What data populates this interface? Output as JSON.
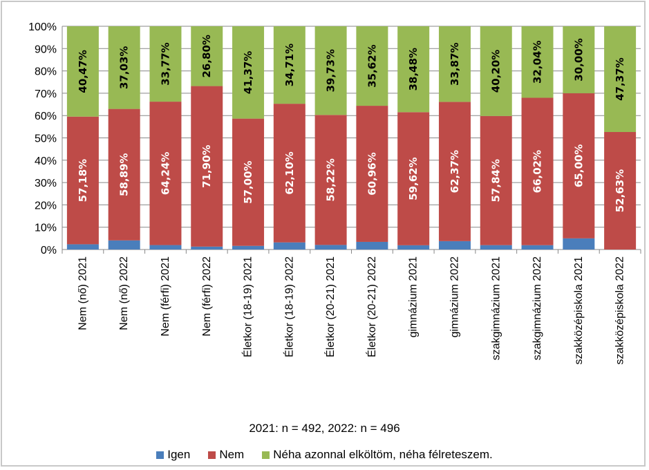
{
  "chart_data": {
    "type": "bar",
    "stacked": true,
    "percent": true,
    "ylim": [
      0,
      100
    ],
    "yticks": [
      "0%",
      "10%",
      "20%",
      "30%",
      "40%",
      "50%",
      "60%",
      "70%",
      "80%",
      "90%",
      "100%"
    ],
    "grid": true,
    "legend_position": "bottom",
    "categories": [
      "Nem (nő) 2021",
      "Nem (nő) 2022",
      "Nem (férfi) 2021",
      "Nem (férfi) 2022",
      "Életkor (18-19) 2021",
      "Életkor (18-19) 2022",
      "Életkor (20-21) 2021",
      "Életkor (20-21) 2022",
      "gimnázium 2021",
      "gimnázium 2022",
      "szakgimnázium 2021",
      "szakgimnázium 2022",
      "szakközépiskola 2021",
      "szakközépiskola 2022"
    ],
    "series": [
      {
        "name": "Igen",
        "color": "#4a7ebb",
        "values": [
          2.35,
          4.08,
          1.99,
          1.3,
          1.63,
          3.19,
          2.05,
          3.42,
          1.9,
          3.76,
          1.96,
          1.94,
          5.0,
          0.0
        ],
        "labels": [
          "",
          "",
          "",
          "",
          "",
          "",
          "",
          "",
          "",
          "",
          "",
          "",
          "",
          ""
        ]
      },
      {
        "name": "Nem",
        "color": "#be4b48",
        "values": [
          57.18,
          58.89,
          64.24,
          71.9,
          57.0,
          62.1,
          58.22,
          60.96,
          59.62,
          62.37,
          57.84,
          66.02,
          65.0,
          52.63
        ],
        "labels": [
          "57,18%",
          "58,89%",
          "64,24%",
          "71,90%",
          "57,00%",
          "62,10%",
          "58,22%",
          "60,96%",
          "59,62%",
          "62,37%",
          "57,84%",
          "66,02%",
          "65,00%",
          "52,63%"
        ]
      },
      {
        "name": "Néha azonnal elköltöm, néha félreteszem.",
        "color": "#98b954",
        "values": [
          40.47,
          37.03,
          33.77,
          26.8,
          41.37,
          34.71,
          39.73,
          35.62,
          38.48,
          33.87,
          40.2,
          32.04,
          30.0,
          47.37
        ],
        "labels": [
          "40,47%",
          "37,03%",
          "33,77%",
          "26,80%",
          "41,37%",
          "34,71%",
          "39,73%",
          "35,62%",
          "38,48%",
          "33,87%",
          "40,20%",
          "32,04%",
          "30,00%",
          "47,37%"
        ]
      }
    ],
    "label_colors": [
      "#ffffff",
      "#ffffff",
      "#000000"
    ],
    "footnote": "2021: n = 492, 2022: n = 496"
  }
}
